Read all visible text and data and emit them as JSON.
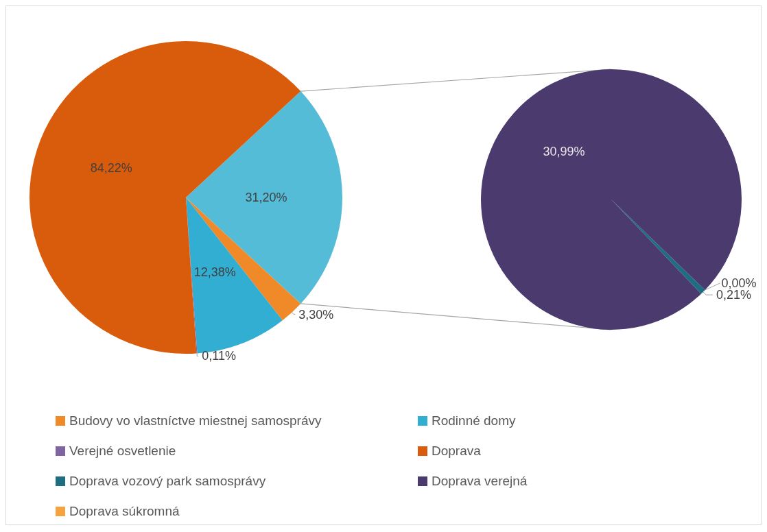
{
  "chart_data": [
    {
      "type": "pie",
      "legend": "bottom",
      "categories": [
        null,
        "Budovy vo vlastníctve miestnej samosprávy",
        "Rodinné domy",
        "Verejné osvetlenie",
        "Doprava"
      ],
      "values": [
        31.2,
        3.3,
        12.38,
        0.11,
        84.22
      ],
      "colors": [
        "#55bcd8",
        "#f08a28",
        "#31aed2",
        "#8064a2",
        "#d95c0c"
      ],
      "value_labels": [
        "31,20%",
        "3,30%",
        "12,38%",
        "0,11%",
        "84,22%"
      ]
    },
    {
      "type": "pie",
      "legend": "bottom",
      "categories": [
        "Doprava vozový park samosprávy",
        "Doprava verejná",
        "Doprava súkromná"
      ],
      "values": [
        0.21,
        30.99,
        0.0
      ],
      "colors": [
        "#1f6d80",
        "#4b3a6e",
        "#f5a340"
      ],
      "value_labels": [
        "0,21%",
        "30,99%",
        "0,00%"
      ]
    }
  ]
}
